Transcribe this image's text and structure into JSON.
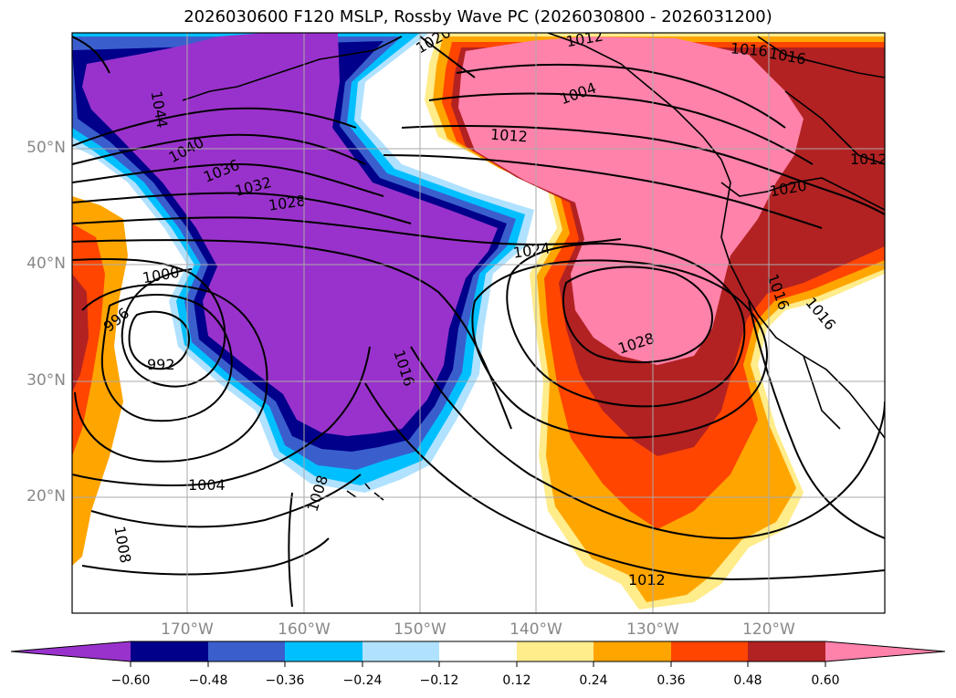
{
  "title": "2026030600 F120 MSLP, Rossby Wave PC (2026030800 - 2026031200)",
  "latitude_labels": [
    "50°N",
    "40°N",
    "30°N",
    "20°N"
  ],
  "longitude_labels": [
    "170°W",
    "160°W",
    "150°W",
    "140°W",
    "130°W",
    "120°W"
  ],
  "colorbar": {
    "ticks": [
      "−0.60",
      "−0.48",
      "−0.36",
      "−0.24",
      "−0.12",
      "0.12",
      "0.24",
      "0.36",
      "0.48",
      "0.60"
    ],
    "colors": [
      "#9932cc",
      "#00008b",
      "#3a5fcd",
      "#00bfff",
      "#b0e2ff",
      "#ffffff",
      "#ffec8b",
      "#ffa500",
      "#ff4500",
      "#b22222",
      "#ff82ab"
    ]
  },
  "contour_labels": [
    "1044",
    "1040",
    "1036",
    "1032",
    "1028",
    "1024",
    "1020",
    "1016",
    "1012",
    "1008",
    "1004",
    "1000",
    "996",
    "992",
    "1028",
    "1016",
    "1012",
    "1004",
    "1016",
    "1012",
    "1020",
    "1016",
    "1008",
    "1016",
    "1012"
  ]
}
